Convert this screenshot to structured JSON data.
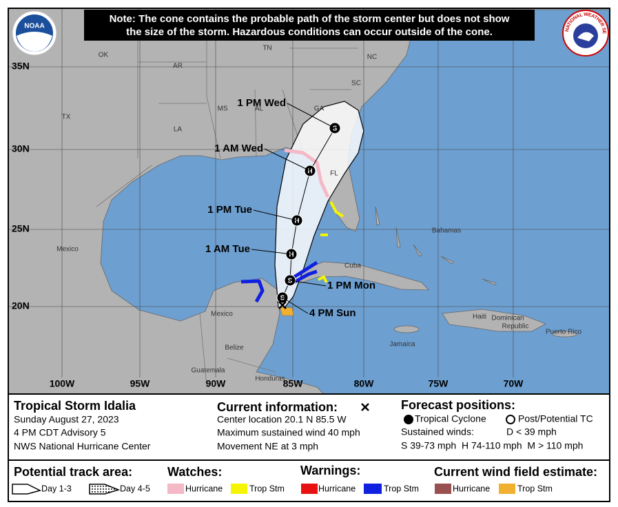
{
  "note": {
    "lines": [
      "Note: The cone contains the probable path of the storm center but does not show",
      "the size of the storm. Hazardous conditions can occur outside of the cone."
    ]
  },
  "logos": {
    "noaa": "NOAA",
    "nws": "NATIONAL WEATHER SERVICE"
  },
  "map": {
    "lat_labels": [
      "35N",
      "30N",
      "25N",
      "20N"
    ],
    "lon_labels": [
      "100W",
      "95W",
      "90W",
      "85W",
      "80W",
      "75W",
      "70W"
    ],
    "place_labels": [
      "OK",
      "TN",
      "NC",
      "AR",
      "SC",
      "MS",
      "AL",
      "GA",
      "TX",
      "LA",
      "FL",
      "Mexico",
      "Bahamas",
      "Cuba",
      "Haiti",
      "Dominican",
      "Republic",
      "Puerto Rico",
      "Jamaica",
      "Belize",
      "Guatemala",
      "Mexico",
      "Honduras"
    ],
    "forecast_labels": [
      "1 PM Wed",
      "1 AM Wed",
      "1 PM Tue",
      "1 AM Tue",
      "1 PM Mon",
      "4 PM Sun"
    ],
    "point_symbols": [
      "S",
      "H",
      "H",
      "H",
      "S",
      "S"
    ]
  },
  "storm": {
    "title": "Tropical Storm Idalia",
    "lines": [
      "Sunday August 27, 2023",
      "4 PM CDT Advisory 5",
      "NWS National Hurricane Center"
    ]
  },
  "current": {
    "title": "Current information:",
    "lines": [
      "Center location 20.1 N 85.5 W",
      "Maximum sustained wind 40 mph",
      "Movement NE at 3 mph"
    ]
  },
  "forecast": {
    "title": "Forecast positions:",
    "tropical": "Tropical Cyclone",
    "post": "Post/Potential TC",
    "winds_label": "Sustained winds:",
    "d": "D < 39 mph",
    "categories": "S 39-73 mph  H 74-110 mph  M > 110 mph"
  },
  "legend": {
    "track": {
      "title": "Potential track area:",
      "day13": "Day 1-3",
      "day45": "Day 4-5"
    },
    "watches": {
      "title": "Watches:",
      "hurricane": "Hurricane",
      "trop": "Trop Stm"
    },
    "warnings": {
      "title": "Warnings:",
      "hurricane": "Hurricane",
      "trop": "Trop Stm"
    },
    "wind": {
      "title": "Current wind field estimate:",
      "hurricane": "Hurricane",
      "trop": "Trop Stm"
    }
  }
}
